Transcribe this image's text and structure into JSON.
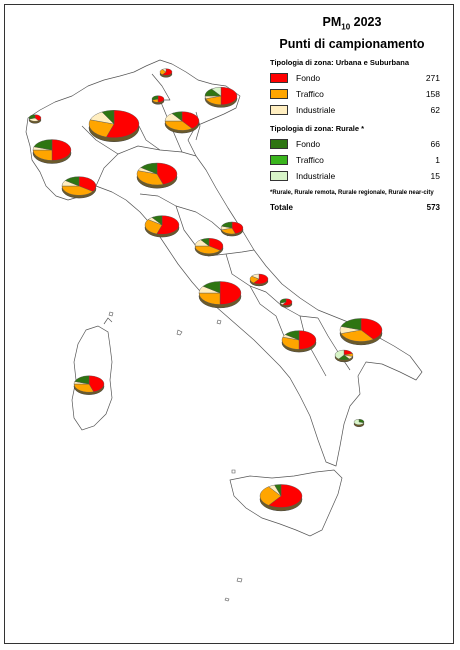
{
  "title": {
    "pm": "PM",
    "sub": "10",
    "year": "2023",
    "line2": "Punti di campionamento"
  },
  "legend": {
    "urban": {
      "title": "Tipologia di zona: Urbana e Suburbana",
      "items": [
        {
          "label": "Fondo",
          "count": "271",
          "color": "#ff0000"
        },
        {
          "label": "Traffico",
          "count": "158",
          "color": "#ffa500"
        },
        {
          "label": "Industriale",
          "count": "62",
          "color": "#ffeec0"
        }
      ]
    },
    "rural": {
      "title": "Tipologia di zona: Rurale *",
      "items": [
        {
          "label": "Fondo",
          "count": "66",
          "color": "#2e7512"
        },
        {
          "label": "Traffico",
          "count": "1",
          "color": "#3ab51d"
        },
        {
          "label": "Industriale",
          "count": "15",
          "color": "#d8f5c8"
        }
      ]
    },
    "note": "*Rurale, Rurale remota, Rurale regionale, Rurale near-city",
    "total_label": "Totale",
    "total_value": "573"
  },
  "colors": {
    "urban_fondo": "#ff0000",
    "urban_traffico": "#ffa500",
    "urban_industriale": "#ffeec0",
    "rural_fondo": "#2e7512",
    "rural_traffico": "#3ab51d",
    "rural_industriale": "#d8f5c8"
  }
}
